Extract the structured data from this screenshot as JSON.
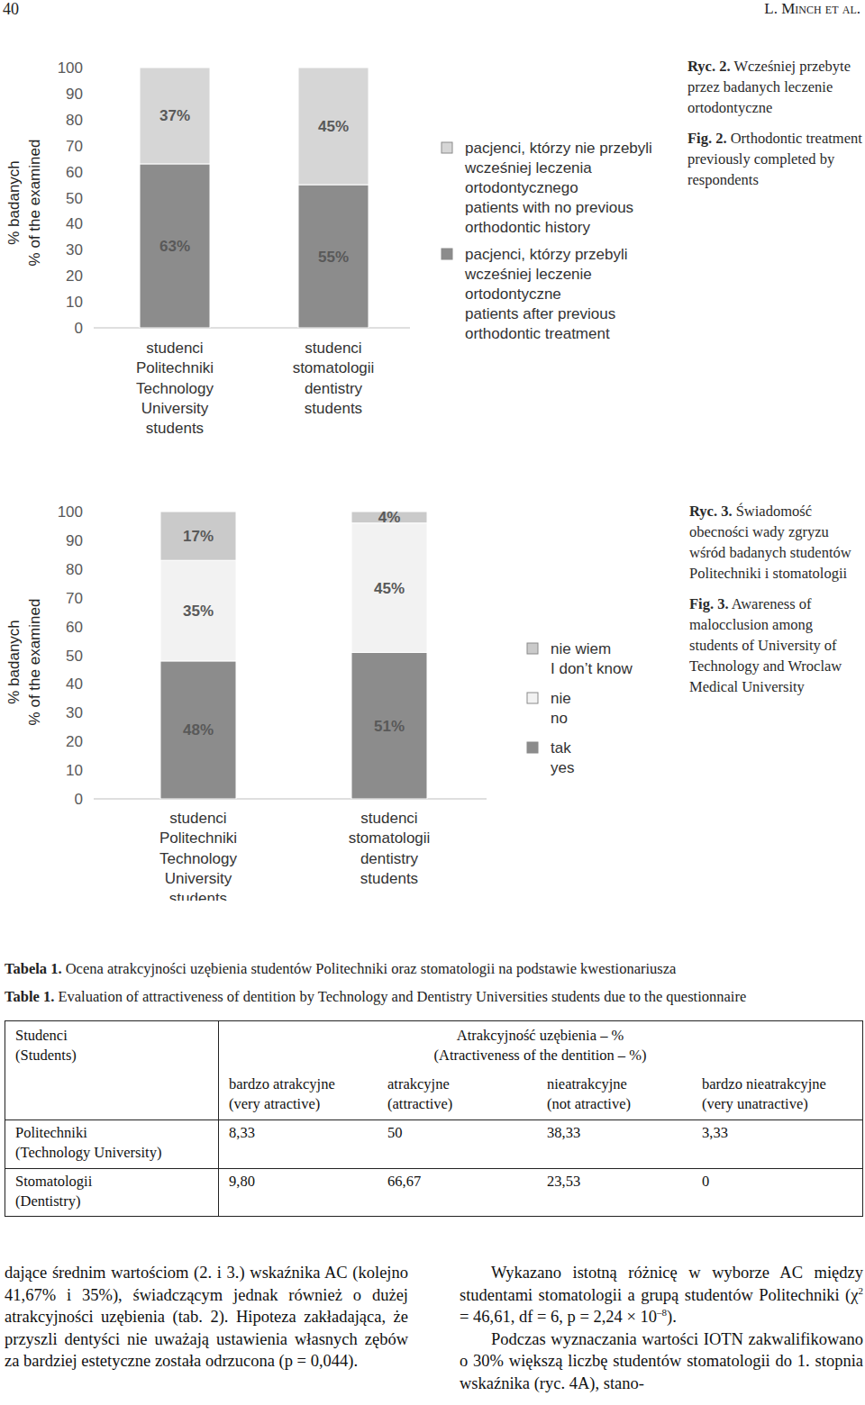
{
  "header": {
    "page": "40",
    "authors": "L. Minch et al."
  },
  "chart_data": [
    {
      "type": "bar",
      "stacked": true,
      "data_labels": true,
      "ylabel": [
        "% badanych",
        "% of the examined"
      ],
      "categories": [
        [
          "studenci",
          "Politechniki",
          "Technology",
          "University",
          "students"
        ],
        [
          "studenci",
          "stomatologii",
          "dentistry",
          "students"
        ]
      ],
      "ylim": [
        0,
        100
      ],
      "yticks": [
        0,
        10,
        20,
        30,
        40,
        50,
        60,
        70,
        80,
        90,
        100
      ],
      "series": [
        {
          "name": [
            "pacjenci, którzy przebyli",
            "wcześniej leczenie",
            "ortodontyczne",
            "patients after previous",
            "orthodontic treatment"
          ],
          "color": "#8c8c8c",
          "values": [
            63,
            55
          ],
          "value_labels": [
            "63%",
            "55%"
          ]
        },
        {
          "name": [
            "pacjenci, którzy nie przebyli",
            "wcześniej leczenia",
            "ortodontycznego",
            "patients with no previous",
            "orthodontic history"
          ],
          "color": "#d6d6d6",
          "values": [
            37,
            45
          ],
          "value_labels": [
            "37%",
            "45%"
          ]
        }
      ],
      "caption": {
        "pl_label": "Ryc. 2.",
        "pl": "Wcześniej przebyte przez badanych leczenie ortodontyczne",
        "en_label": "Fig. 2.",
        "en": "Orthodontic treatment previously completed by respondents"
      }
    },
    {
      "type": "bar",
      "stacked": true,
      "data_labels": true,
      "ylabel": [
        "% badanych",
        "% of the examined"
      ],
      "categories": [
        [
          "studenci",
          "Politechniki",
          "Technology",
          "University",
          "students"
        ],
        [
          "studenci",
          "stomatologii",
          "dentistry",
          "students"
        ]
      ],
      "ylim": [
        0,
        100
      ],
      "yticks": [
        0,
        10,
        20,
        30,
        40,
        50,
        60,
        70,
        80,
        90,
        100
      ],
      "series": [
        {
          "name": [
            "tak",
            "yes"
          ],
          "color": "#8c8c8c",
          "values": [
            48,
            51
          ],
          "value_labels": [
            "48%",
            "51%"
          ]
        },
        {
          "name": [
            "nie",
            "no"
          ],
          "color": "#f2f2f2",
          "values": [
            35,
            45
          ],
          "value_labels": [
            "35%",
            "45%"
          ]
        },
        {
          "name": [
            "nie wiem",
            "I don’t know"
          ],
          "color": "#cacaca",
          "values": [
            17,
            4
          ],
          "value_labels": [
            "17%",
            "4%"
          ]
        }
      ],
      "caption": {
        "pl_label": "Ryc. 3.",
        "pl": "Świadomość obecności wady zgryzu wśród badanych studentów Politechniki i stomatologii",
        "en_label": "Fig. 3.",
        "en": "Awareness of malocclusion among students of University of Technology and Wroclaw Medical University"
      }
    }
  ],
  "table": {
    "title_pl": {
      "label": "Tabela 1.",
      "text": "Ocena atrakcyjności uzębienia studentów Politechniki oraz stomatologii na podstawie kwestionariusza"
    },
    "title_en": {
      "label": "Table 1.",
      "text": "Evaluation of attractiveness of dentition by Technology and Dentistry Universities students due to the questionnaire"
    },
    "corner": [
      "Studenci",
      "(Students)"
    ],
    "group_header": [
      "Atrakcyjność uzębienia – %",
      "(Atractiveness of the dentition – %)"
    ],
    "columns": [
      [
        "bardzo atrakcyjne",
        "(very atractive)"
      ],
      [
        "atrakcyjne",
        "(attractive)"
      ],
      [
        "nieatrakcyjne",
        "(not atractive)"
      ],
      [
        "bardzo nieatrakcyjne",
        "(very unatractive)"
      ]
    ],
    "rows": [
      {
        "label": [
          "Politechniki",
          "(Technology University)"
        ],
        "cells": [
          "8,33",
          "50",
          "38,33",
          "3,33"
        ]
      },
      {
        "label": [
          "Stomatologii",
          "(Dentistry)"
        ],
        "cells": [
          "9,80",
          "66,67",
          "23,53",
          "0"
        ]
      }
    ]
  },
  "body": {
    "left": [
      [
        {
          "t": "dające średnim wartościom (2. i 3.) wskaźnika AC (kolejno 41,67% i 35%), świadczącym jednak również o dużej atrakcyjności uzębienia (tab. 2). Hipoteza zakładająca, że przyszli dentyści nie uważają ustawienia własnych zębów za bardziej estetyczne została odrzucona (p = 0,044)."
        }
      ]
    ],
    "right": [
      [
        {
          "t": "Wykazano istotną różnicę w wyborze AC między studentami stomatologii a grupą studentów Politechniki (χ"
        },
        {
          "t": "2",
          "sup": true
        },
        {
          "t": " = 46,61, df = 6, p = 2,24 × 10"
        },
        {
          "t": "–8",
          "sup": true
        },
        {
          "t": ")."
        }
      ],
      [
        {
          "t": "Podczas wyznaczania wartości IOTN zakwalifikowano o 30% większą liczbę studentów stomatologii do 1. stopnia wskaźnika (ryc. 4A), stano-"
        }
      ]
    ]
  }
}
